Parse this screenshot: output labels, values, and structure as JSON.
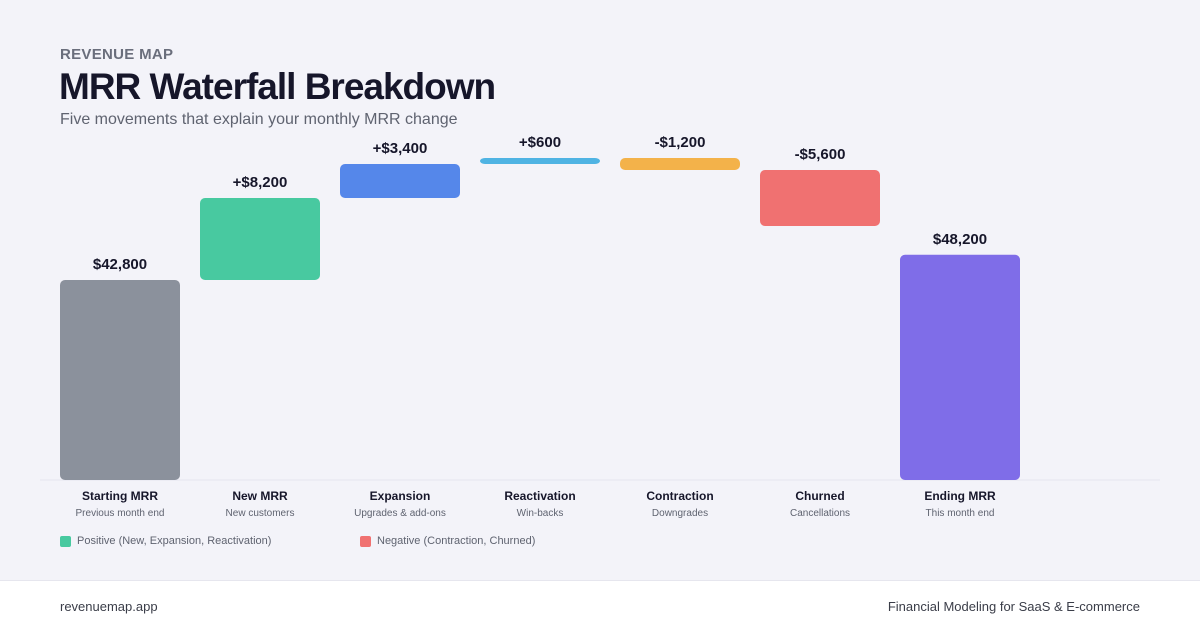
{
  "header": {
    "eyebrow": "REVENUE MAP",
    "title": "MRR Waterfall Breakdown",
    "subtitle": "Five movements that explain your monthly MRR change"
  },
  "chart_data": {
    "type": "bar",
    "subtype": "waterfall",
    "title": "MRR Waterfall Breakdown",
    "categories": [
      "Starting MRR",
      "New MRR",
      "Expansion",
      "Reactivation",
      "Contraction",
      "Churned",
      "Ending MRR"
    ],
    "sublabels": [
      "Previous month end",
      "New customers",
      "Upgrades & add-ons",
      "Win-backs",
      "Downgrades",
      "Cancellations",
      "This month end"
    ],
    "values": [
      42800,
      8200,
      3400,
      600,
      -1200,
      -5600,
      48200
    ],
    "kinds": [
      "total",
      "delta",
      "delta",
      "delta",
      "delta",
      "delta",
      "total"
    ],
    "value_labels": [
      "$42,800",
      "+$8,200",
      "+$3,400",
      "+$600",
      "-$1,200",
      "-$5,600",
      "$48,200"
    ],
    "colors": [
      "#8b919c",
      "#48c9a0",
      "#5587ea",
      "#4fb3e3",
      "#f3b24a",
      "#f07171",
      "#7f6de8"
    ]
  },
  "legend": [
    {
      "label": "Positive (New, Expansion, Reactivation)",
      "color": "#48c9a0"
    },
    {
      "label": "Negative (Contraction, Churned)",
      "color": "#f07171"
    }
  ],
  "footer": {
    "left": "revenuemap.app",
    "right": "Financial Modeling for SaaS & E-commerce"
  }
}
